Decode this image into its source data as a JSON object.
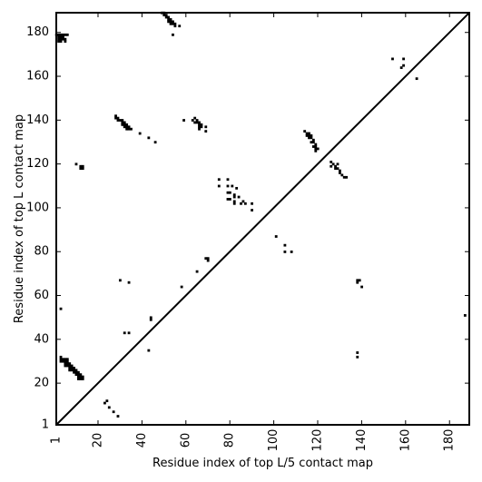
{
  "chart_data": {
    "type": "scatter",
    "xlabel": "Residue index of top L/5 contact map",
    "ylabel": "Residue index of top L contact map",
    "xlim": [
      1,
      189
    ],
    "ylim": [
      1,
      189
    ],
    "xticks": [
      1,
      20,
      40,
      60,
      80,
      100,
      120,
      140,
      160,
      180
    ],
    "yticks": [
      1,
      20,
      40,
      60,
      80,
      100,
      120,
      140,
      160,
      180
    ],
    "diagonal": true,
    "marker_color": "#000000",
    "points": [
      [
        1,
        179
      ],
      [
        2,
        179
      ],
      [
        3,
        179
      ],
      [
        4,
        179
      ],
      [
        5,
        179
      ],
      [
        6,
        179
      ],
      [
        2,
        178
      ],
      [
        3,
        178
      ],
      [
        4,
        178
      ],
      [
        2,
        177
      ],
      [
        3,
        177
      ],
      [
        4,
        177
      ],
      [
        5,
        177
      ],
      [
        2,
        176
      ],
      [
        3,
        176
      ],
      [
        5,
        176
      ],
      [
        49,
        189
      ],
      [
        50,
        189
      ],
      [
        51,
        188
      ],
      [
        50,
        188
      ],
      [
        51,
        187
      ],
      [
        52,
        187
      ],
      [
        52,
        186
      ],
      [
        53,
        186
      ],
      [
        52,
        185
      ],
      [
        53,
        185
      ],
      [
        54,
        185
      ],
      [
        53,
        184
      ],
      [
        54,
        184
      ],
      [
        55,
        184
      ],
      [
        55,
        183
      ],
      [
        54,
        179
      ],
      [
        57,
        183
      ],
      [
        28,
        142
      ],
      [
        28,
        141
      ],
      [
        29,
        141
      ],
      [
        29,
        140
      ],
      [
        30,
        140
      ],
      [
        31,
        140
      ],
      [
        31,
        139
      ],
      [
        32,
        139
      ],
      [
        31,
        138
      ],
      [
        32,
        138
      ],
      [
        33,
        138
      ],
      [
        32,
        137
      ],
      [
        33,
        137
      ],
      [
        34,
        137
      ],
      [
        33,
        136
      ],
      [
        34,
        136
      ],
      [
        35,
        136
      ],
      [
        39,
        134
      ],
      [
        43,
        132
      ],
      [
        46,
        130
      ],
      [
        59,
        140
      ],
      [
        63,
        140
      ],
      [
        64,
        141
      ],
      [
        65,
        140
      ],
      [
        64,
        139
      ],
      [
        65,
        139
      ],
      [
        66,
        139
      ],
      [
        66,
        138
      ],
      [
        67,
        138
      ],
      [
        66,
        137
      ],
      [
        67,
        137
      ],
      [
        66,
        136
      ],
      [
        69,
        137
      ],
      [
        69,
        135
      ],
      [
        10,
        120
      ],
      [
        12,
        119
      ],
      [
        13,
        119
      ],
      [
        12,
        118
      ],
      [
        13,
        118
      ],
      [
        114,
        135
      ],
      [
        115,
        134
      ],
      [
        116,
        134
      ],
      [
        115,
        133
      ],
      [
        116,
        133
      ],
      [
        117,
        133
      ],
      [
        116,
        132
      ],
      [
        117,
        132
      ],
      [
        118,
        131
      ],
      [
        117,
        130
      ],
      [
        118,
        130
      ],
      [
        119,
        129
      ],
      [
        118,
        128
      ],
      [
        119,
        128
      ],
      [
        119,
        127
      ],
      [
        120,
        127
      ],
      [
        119,
        126
      ],
      [
        126,
        121
      ],
      [
        127,
        120
      ],
      [
        126,
        119
      ],
      [
        128,
        119
      ],
      [
        129,
        120
      ],
      [
        128,
        118
      ],
      [
        129,
        118
      ],
      [
        130,
        117
      ],
      [
        130,
        116
      ],
      [
        131,
        115
      ],
      [
        132,
        114
      ],
      [
        133,
        114
      ],
      [
        75,
        113
      ],
      [
        79,
        113
      ],
      [
        75,
        110
      ],
      [
        79,
        110
      ],
      [
        81,
        110
      ],
      [
        83,
        109
      ],
      [
        79,
        107
      ],
      [
        80,
        107
      ],
      [
        82,
        106
      ],
      [
        82,
        105
      ],
      [
        84,
        105
      ],
      [
        79,
        104
      ],
      [
        80,
        104
      ],
      [
        82,
        103
      ],
      [
        86,
        103
      ],
      [
        82,
        102
      ],
      [
        85,
        102
      ],
      [
        87,
        102
      ],
      [
        90,
        102
      ],
      [
        90,
        99
      ],
      [
        101,
        87
      ],
      [
        105,
        83
      ],
      [
        105,
        80
      ],
      [
        108,
        80
      ],
      [
        70,
        77
      ],
      [
        70,
        76
      ],
      [
        69,
        77
      ],
      [
        65,
        71
      ],
      [
        58,
        64
      ],
      [
        30,
        67
      ],
      [
        34,
        66
      ],
      [
        3,
        54
      ],
      [
        44,
        50
      ],
      [
        44,
        49
      ],
      [
        32,
        43
      ],
      [
        34,
        43
      ],
      [
        43,
        35
      ],
      [
        3,
        32
      ],
      [
        3,
        31
      ],
      [
        4,
        31
      ],
      [
        5,
        31
      ],
      [
        6,
        31
      ],
      [
        3,
        30
      ],
      [
        4,
        30
      ],
      [
        5,
        30
      ],
      [
        6,
        30
      ],
      [
        5,
        29
      ],
      [
        6,
        29
      ],
      [
        7,
        29
      ],
      [
        5,
        28
      ],
      [
        6,
        28
      ],
      [
        7,
        28
      ],
      [
        8,
        28
      ],
      [
        7,
        27
      ],
      [
        8,
        27
      ],
      [
        9,
        27
      ],
      [
        7,
        26
      ],
      [
        8,
        26
      ],
      [
        9,
        26
      ],
      [
        10,
        26
      ],
      [
        9,
        25
      ],
      [
        10,
        25
      ],
      [
        11,
        25
      ],
      [
        10,
        24
      ],
      [
        11,
        24
      ],
      [
        12,
        24
      ],
      [
        11,
        23
      ],
      [
        12,
        23
      ],
      [
        13,
        23
      ],
      [
        11,
        22
      ],
      [
        12,
        22
      ],
      [
        13,
        22
      ],
      [
        24,
        12
      ],
      [
        23,
        11
      ],
      [
        25,
        9
      ],
      [
        27,
        7
      ],
      [
        29,
        5
      ],
      [
        154,
        168
      ],
      [
        159,
        168
      ],
      [
        159,
        165
      ],
      [
        158,
        164
      ],
      [
        165,
        159
      ],
      [
        138,
        67
      ],
      [
        139,
        67
      ],
      [
        138,
        66
      ],
      [
        140,
        64
      ],
      [
        138,
        34
      ],
      [
        138,
        32
      ],
      [
        187,
        51
      ]
    ]
  }
}
